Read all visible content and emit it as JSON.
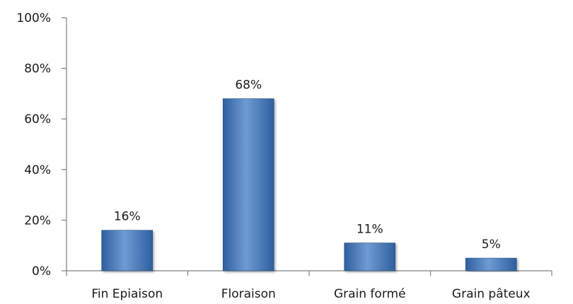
{
  "chart_data": {
    "type": "bar",
    "categories": [
      "Fin Epiaison",
      "Floraison",
      "Grain formé",
      "Grain pâteux"
    ],
    "values": [
      16,
      68,
      11,
      5
    ],
    "data_labels": [
      "16%",
      "68%",
      "11%",
      "5%"
    ],
    "title": "",
    "xlabel": "",
    "ylabel": "",
    "ylim": [
      0,
      100
    ],
    "yticks": [
      0,
      20,
      40,
      60,
      80,
      100
    ],
    "ytick_labels": [
      "0%",
      "20%",
      "40%",
      "60%",
      "80%",
      "100%"
    ],
    "grid": false,
    "legend": "none",
    "colors": {
      "bar_dark": "#2e5f9e",
      "bar_mid": "#4f81bd",
      "bar_light": "#6f9bd3",
      "axis": "#7f7f7f",
      "text": "#1a1a1a"
    }
  }
}
